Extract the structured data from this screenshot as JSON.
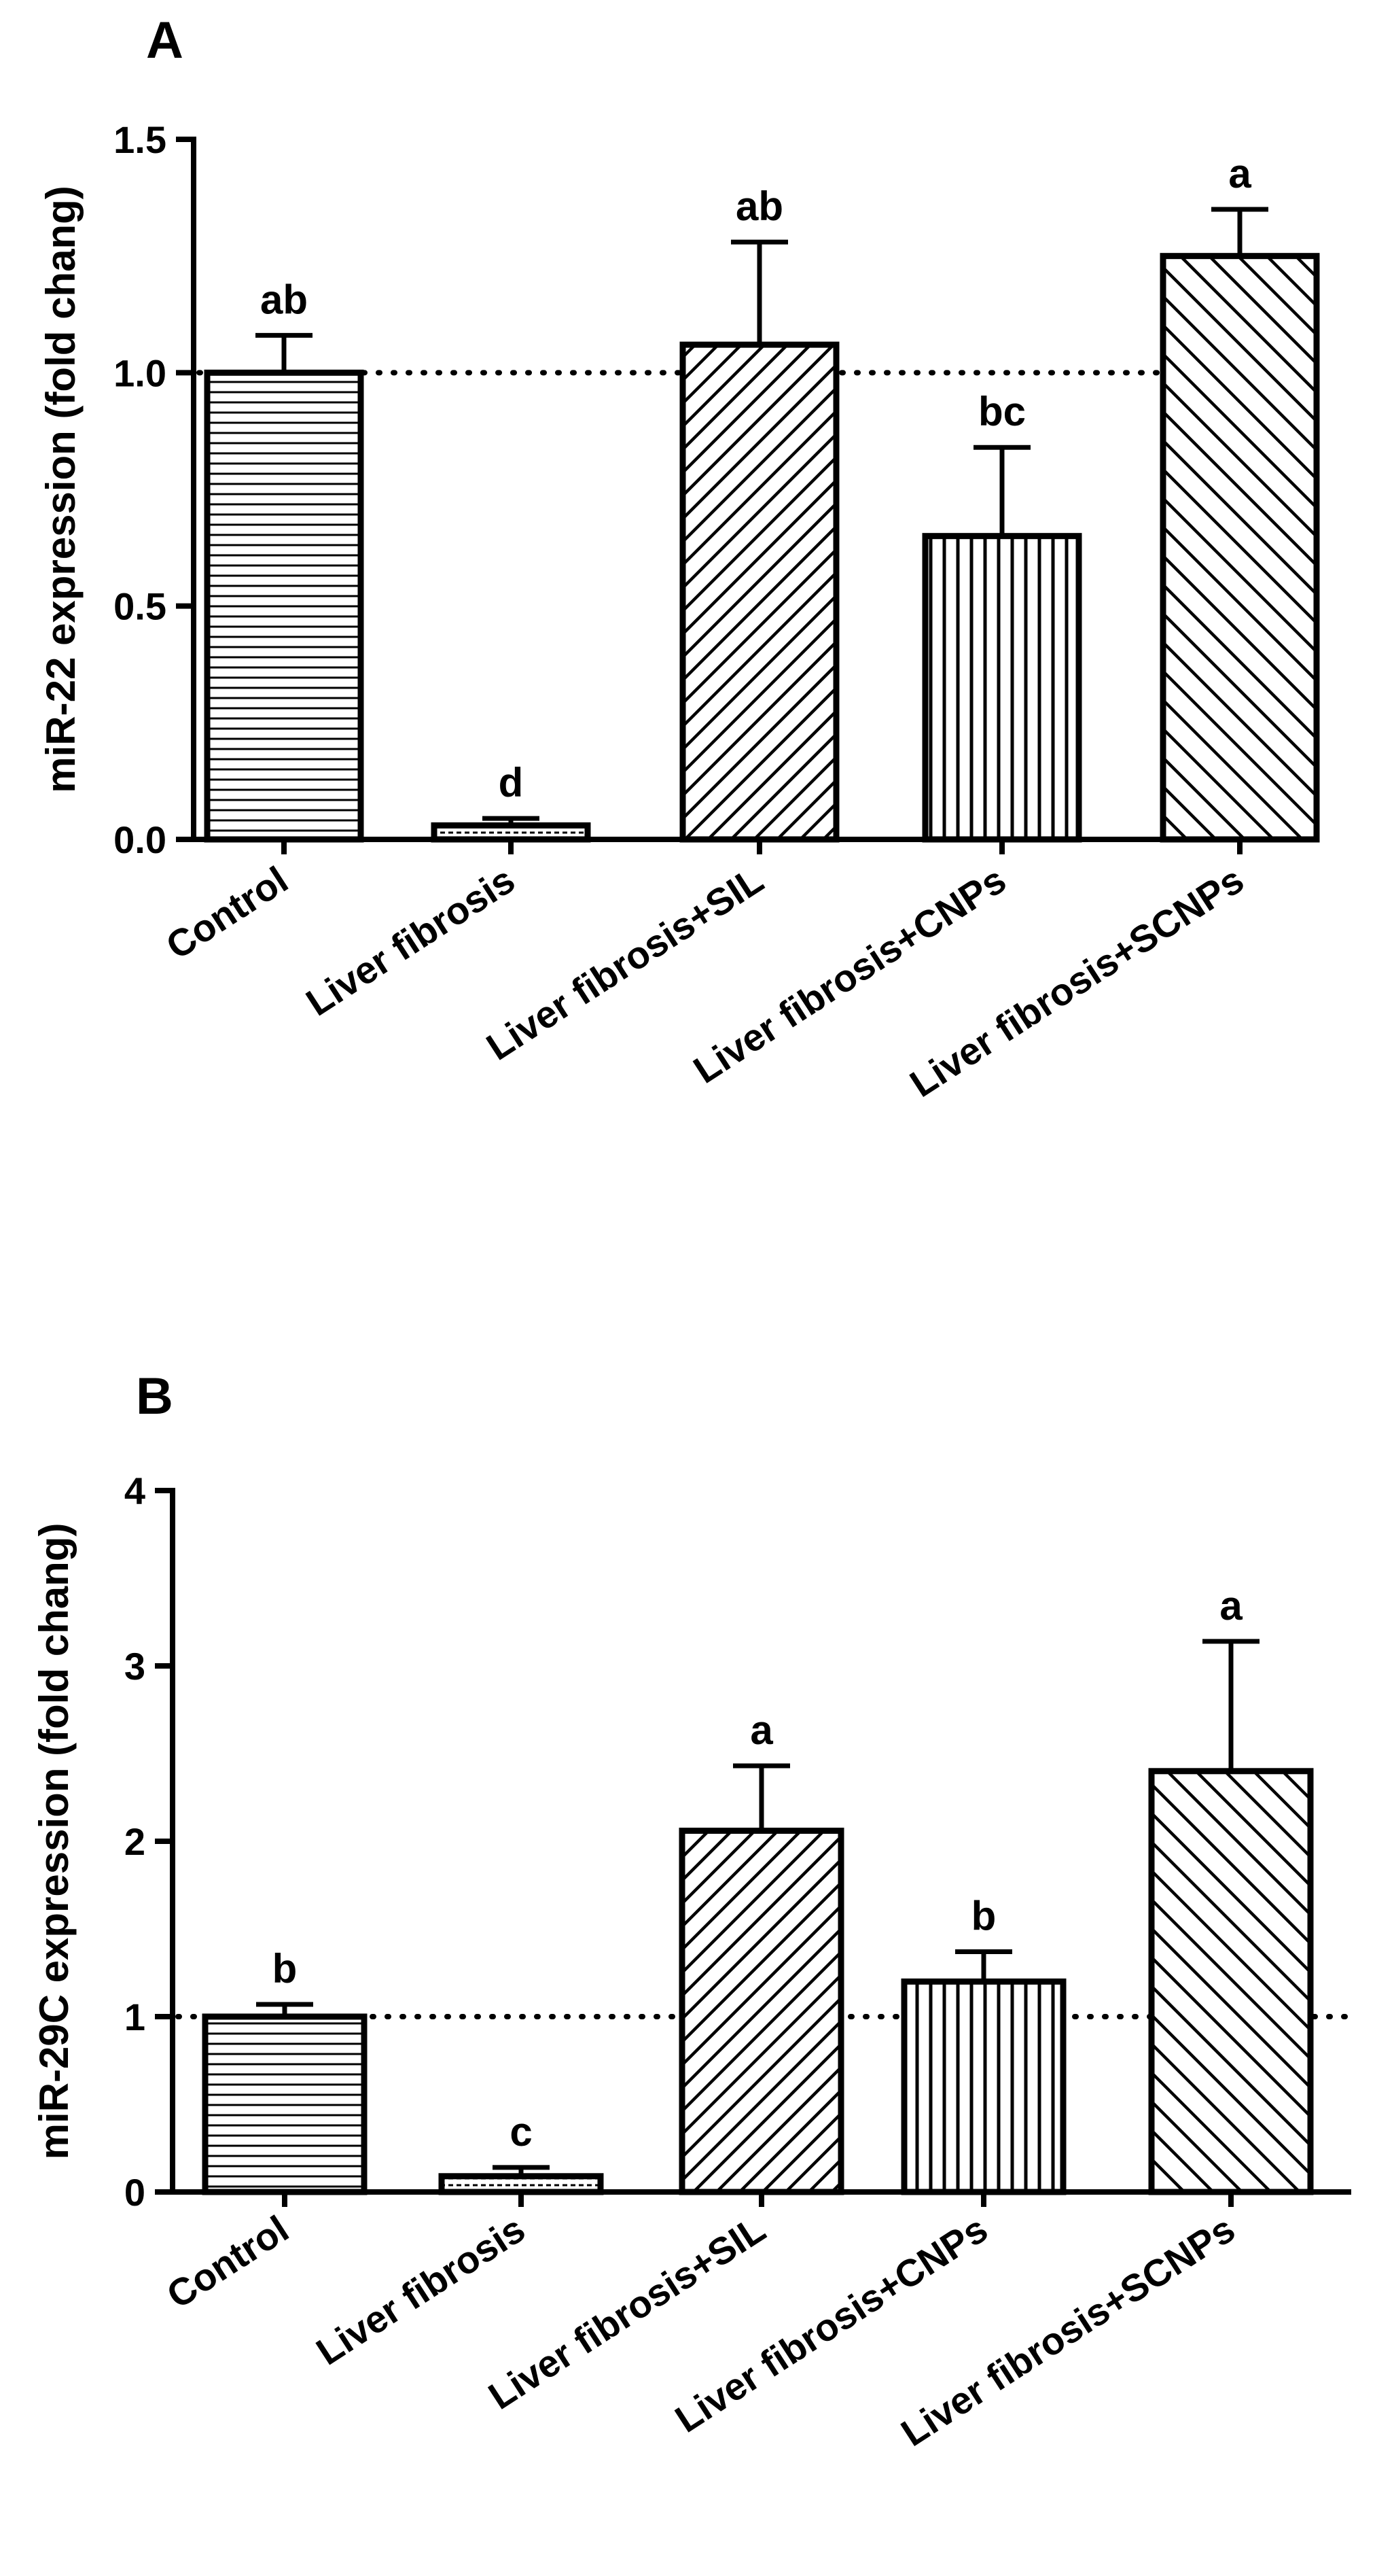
{
  "chart_data": [
    {
      "panel": "A",
      "type": "bar",
      "title": "",
      "xlabel": "",
      "ylabel": "miR-22 expression (fold chang)",
      "ylim": [
        0,
        1.5
      ],
      "yticks": [
        0.0,
        0.5,
        1.0,
        1.5
      ],
      "ytick_labels": [
        "0.0",
        "0.5",
        "1.0",
        "1.5"
      ],
      "reference_line": 1.0,
      "categories": [
        "Control",
        "Liver fibrosis",
        "Liver fibrosis+SIL",
        "Liver fibrosis+CNPs",
        "Liver fibrosis+SCNPs"
      ],
      "values": [
        1.0,
        0.03,
        1.06,
        0.65,
        1.25
      ],
      "errors": [
        0.08,
        0.015,
        0.22,
        0.19,
        0.1
      ],
      "significance": [
        "ab",
        "d",
        "ab",
        "bc",
        "a"
      ],
      "patterns": [
        "horizontal",
        "dense",
        "diagonal-right-dense",
        "vertical",
        "diagonal-left"
      ]
    },
    {
      "panel": "B",
      "type": "bar",
      "title": "",
      "xlabel": "",
      "ylabel": "miR-29C expression (fold chang)",
      "ylim": [
        0,
        4
      ],
      "yticks": [
        0,
        1,
        2,
        3,
        4
      ],
      "ytick_labels": [
        "0",
        "1",
        "2",
        "3",
        "4"
      ],
      "reference_line": 1.0,
      "categories": [
        "Control",
        "Liver fibrosis",
        "Liver fibrosis+SIL",
        "Liver fibrosis+CNPs",
        "Liver fibrosis+SCNPs"
      ],
      "values": [
        1.0,
        0.09,
        2.06,
        1.2,
        2.4
      ],
      "errors": [
        0.07,
        0.05,
        0.37,
        0.17,
        0.74
      ],
      "significance": [
        "b",
        "c",
        "a",
        "b",
        "a"
      ],
      "patterns": [
        "horizontal",
        "dense",
        "diagonal-right-dense",
        "vertical",
        "diagonal-left"
      ]
    }
  ]
}
